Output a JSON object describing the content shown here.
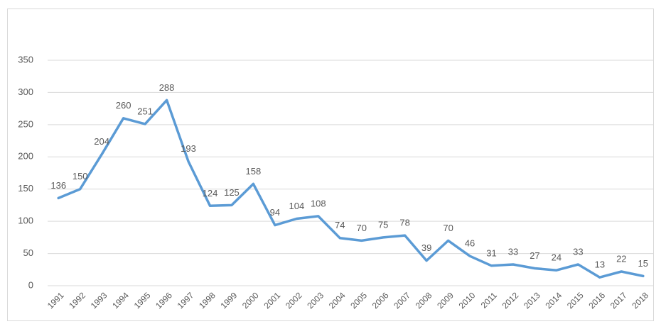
{
  "chart_data": {
    "type": "line",
    "categories": [
      "1991",
      "1992",
      "1993",
      "1994",
      "1995",
      "1996",
      "1997",
      "1998",
      "1999",
      "2000",
      "2001",
      "2002",
      "2003",
      "2004",
      "2005",
      "2006",
      "2007",
      "2008",
      "2009",
      "2010",
      "2011",
      "2012",
      "2013",
      "2014",
      "2015",
      "2016",
      "2017",
      "2018"
    ],
    "values": [
      136,
      150,
      204,
      260,
      251,
      288,
      193,
      124,
      125,
      158,
      94,
      104,
      108,
      74,
      70,
      75,
      78,
      39,
      70,
      46,
      31,
      33,
      27,
      24,
      33,
      13,
      22,
      15
    ],
    "color": "#5b9bd5",
    "ylim": [
      0,
      350
    ],
    "yticks": [
      0,
      50,
      100,
      150,
      200,
      250,
      300,
      350
    ],
    "grid": true,
    "data_labels": true
  }
}
